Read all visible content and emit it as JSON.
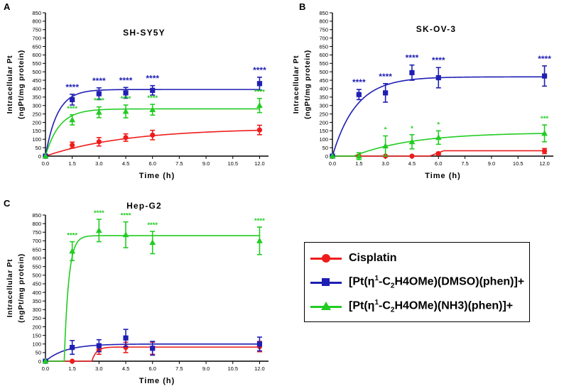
{
  "colors": {
    "cisplatin": "#ee1c1c",
    "dmso": "#1f1fb4",
    "nh3": "#22cc22"
  },
  "legend": {
    "items": [
      {
        "series": "cisplatin",
        "marker": "circle",
        "pre": "Cisplatin",
        "sup": "",
        "mid": "",
        "sub": "",
        "post": ""
      },
      {
        "series": "dmso",
        "marker": "square",
        "pre": "[Pt(η",
        "sup": "1",
        "mid": "-C",
        "sub": "2",
        "post": "H4OMe)(DMSO)(phen)]+"
      },
      {
        "series": "nh3",
        "marker": "triangle",
        "pre": "[Pt(η",
        "sup": "1",
        "mid": "-C",
        "sub": "2",
        "post": "H4OMe)(NH3)(phen)]+"
      }
    ]
  },
  "chart_data": [
    {
      "type": "line",
      "panel_letter": "A",
      "title": "SH-SY5Y",
      "xlabel": "Time (h)",
      "ylabel_line1": "Intracellular Pt",
      "ylabel_line2": "(ngPt/mg protein)",
      "xlim": [
        0,
        12.5
      ],
      "ylim": [
        0,
        850
      ],
      "xticks": [
        "0.0",
        "1.5",
        "3.0",
        "4.5",
        "6.0",
        "7.5",
        "9.0",
        "10.5",
        "12.0"
      ],
      "yticks": [
        0,
        50,
        100,
        150,
        200,
        250,
        300,
        350,
        400,
        450,
        500,
        550,
        600,
        650,
        700,
        750,
        800,
        850
      ],
      "x": [
        0,
        1.5,
        3.0,
        4.5,
        6.0,
        12.0
      ],
      "series": [
        {
          "key": "cisplatin",
          "marker": "circle",
          "values": [
            0,
            65,
            85,
            110,
            125,
            155
          ],
          "errors": [
            0,
            18,
            25,
            22,
            28,
            28
          ],
          "fit": {
            "kind": "exp",
            "ymax": 165,
            "k": 0.22
          },
          "stars": [
            "",
            "",
            "",
            "",
            "",
            ""
          ]
        },
        {
          "key": "dmso",
          "marker": "square",
          "values": [
            0,
            335,
            370,
            375,
            390,
            430
          ],
          "errors": [
            0,
            32,
            35,
            32,
            28,
            38
          ],
          "fit": {
            "kind": "exp",
            "ymax": 395,
            "k": 1.5
          },
          "stars": [
            "",
            "****",
            "****",
            "****",
            "****",
            "****"
          ]
        },
        {
          "key": "nh3",
          "marker": "triangle",
          "values": [
            0,
            215,
            260,
            265,
            275,
            300
          ],
          "errors": [
            0,
            30,
            32,
            38,
            32,
            42
          ],
          "fit": {
            "kind": "exp",
            "ymax": 280,
            "k": 1.3
          },
          "stars": [
            "",
            "****",
            "****",
            "****",
            "****",
            "****"
          ]
        }
      ]
    },
    {
      "type": "line",
      "panel_letter": "B",
      "title": "SK-OV-3",
      "xlabel": "Time (h)",
      "ylabel_line1": "Intracellular Pt",
      "ylabel_line2": "(ngPt/mg protein)",
      "xlim": [
        0,
        12.5
      ],
      "ylim": [
        0,
        850
      ],
      "xticks": [
        "0.0",
        "1.5",
        "3.0",
        "4.5",
        "6.0",
        "7.5",
        "9.0",
        "10.5",
        "12.0"
      ],
      "yticks": [
        0,
        50,
        100,
        150,
        200,
        250,
        300,
        350,
        400,
        450,
        500,
        550,
        600,
        650,
        700,
        750,
        800,
        850
      ],
      "x": [
        0,
        1.5,
        3.0,
        4.5,
        6.0,
        12.0
      ],
      "series": [
        {
          "key": "cisplatin",
          "marker": "circle",
          "values": [
            0,
            0,
            0,
            0,
            15,
            30
          ],
          "errors": [
            0,
            0,
            0,
            0,
            8,
            15
          ],
          "fit": {
            "kind": "plateau",
            "ymax": 32,
            "x0": 5.5,
            "x1": 6.3
          },
          "stars": [
            "",
            "",
            "",
            "",
            "",
            ""
          ]
        },
        {
          "key": "dmso",
          "marker": "square",
          "values": [
            0,
            365,
            375,
            495,
            465,
            475
          ],
          "errors": [
            0,
            30,
            55,
            45,
            60,
            60
          ],
          "fit": {
            "kind": "exp",
            "ymax": 470,
            "k": 0.75
          },
          "stars": [
            "",
            "****",
            "****",
            "****",
            "****",
            "****"
          ]
        },
        {
          "key": "nh3",
          "marker": "triangle",
          "values": [
            0,
            0,
            60,
            85,
            110,
            135
          ],
          "errors": [
            0,
            20,
            60,
            42,
            40,
            50
          ],
          "fit": {
            "kind": "delayed",
            "ymax": 140,
            "k": 0.3,
            "x0": 1.2
          },
          "stars": [
            "",
            "",
            "*",
            "*",
            "*",
            "***"
          ]
        }
      ]
    },
    {
      "type": "line",
      "panel_letter": "C",
      "title": "Hep-G2",
      "xlabel": "Time (h)",
      "ylabel_line1": "Intracellular Pt",
      "ylabel_line2": "(ngPt/mg protein)",
      "xlim": [
        0,
        12.5
      ],
      "ylim": [
        0,
        850
      ],
      "xticks": [
        "0.0",
        "1.5",
        "3.0",
        "4.5",
        "6.0",
        "7.5",
        "9.0",
        "10.5",
        "12.0"
      ],
      "yticks": [
        0,
        50,
        100,
        150,
        200,
        250,
        300,
        350,
        400,
        450,
        500,
        550,
        600,
        650,
        700,
        750,
        800,
        850
      ],
      "x": [
        0,
        1.5,
        3.0,
        4.5,
        6.0,
        12.0
      ],
      "series": [
        {
          "key": "cisplatin",
          "marker": "circle",
          "values": [
            0,
            0,
            65,
            80,
            75,
            85
          ],
          "errors": [
            0,
            0,
            25,
            30,
            35,
            30
          ],
          "fit": {
            "kind": "delayed",
            "ymax": 82,
            "k": 4,
            "x0": 2.6
          },
          "stars": [
            "",
            "",
            "",
            "",
            "",
            ""
          ]
        },
        {
          "key": "dmso",
          "marker": "square",
          "values": [
            0,
            80,
            90,
            135,
            75,
            100
          ],
          "errors": [
            0,
            40,
            35,
            50,
            40,
            40
          ],
          "fit": {
            "kind": "exp",
            "ymax": 100,
            "k": 0.9
          },
          "stars": [
            "",
            "",
            "",
            "",
            "",
            ""
          ]
        },
        {
          "key": "nh3",
          "marker": "triangle",
          "values": [
            0,
            640,
            760,
            735,
            690,
            700
          ],
          "errors": [
            0,
            55,
            65,
            75,
            65,
            80
          ],
          "fit": {
            "kind": "delayed",
            "ymax": 730,
            "k": 4,
            "x0": 1.05
          },
          "stars": [
            "",
            "****",
            "****",
            "****",
            "****",
            "****"
          ]
        }
      ]
    }
  ]
}
